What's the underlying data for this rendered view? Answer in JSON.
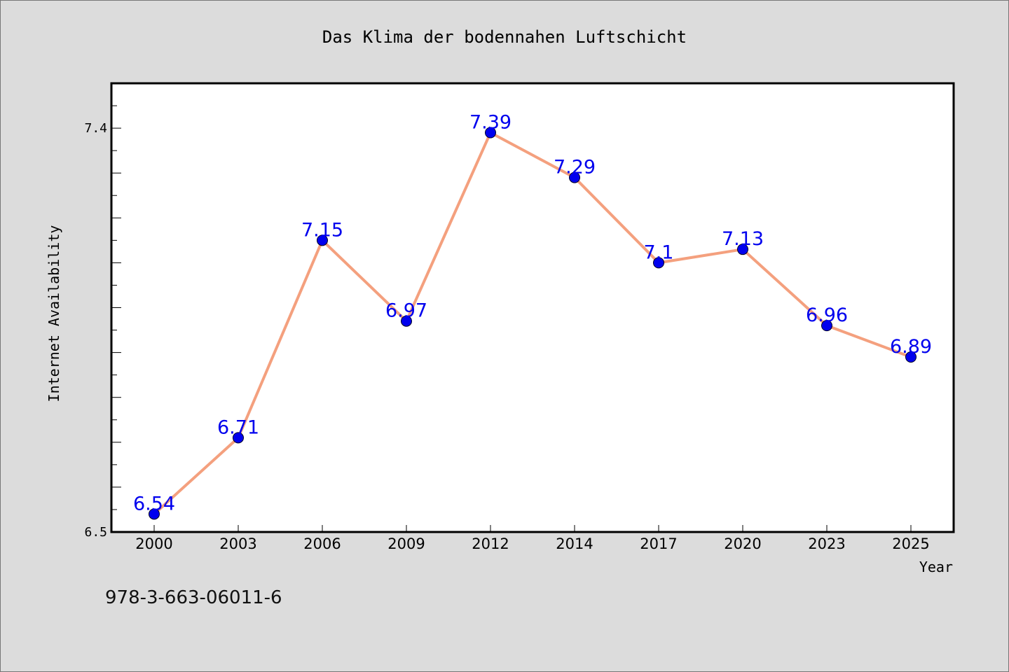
{
  "chart_data": {
    "type": "line",
    "title": "Das Klima der bodennahen Luftschicht",
    "xlabel": "Year",
    "ylabel": "Internet Availability",
    "categories": [
      "2000",
      "2003",
      "2006",
      "2009",
      "2012",
      "2014",
      "2017",
      "2020",
      "2023",
      "2025"
    ],
    "series": [
      {
        "values": [
          6.54,
          6.71,
          7.15,
          6.97,
          7.39,
          7.29,
          7.1,
          7.13,
          6.96,
          6.89
        ],
        "labels": [
          "6.54",
          "6.71",
          "7.15",
          "6.97",
          "7.39",
          "7.29",
          "7.1",
          "7.13",
          "6.96",
          "6.89"
        ],
        "line_color": "#f4a07e",
        "marker_color": "#0000ee",
        "label_color": "#0000ee"
      }
    ],
    "yticks": [
      "6.5",
      "7.4"
    ],
    "ylim": [
      6.5,
      7.5
    ],
    "grid": false,
    "legend": "none"
  },
  "footer_text": "978-3-663-06011-6",
  "colors": {
    "background": "#dcdcdc",
    "plot_background": "#ffffff",
    "axis": "#000000"
  }
}
